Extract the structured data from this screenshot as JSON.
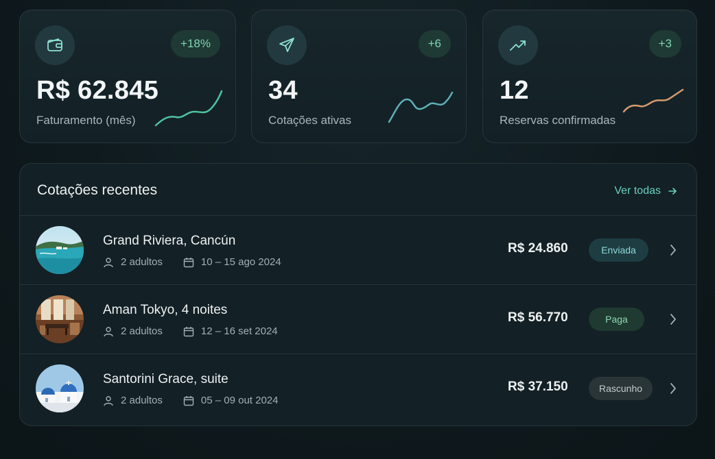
{
  "stats": [
    {
      "icon": "wallet-icon",
      "delta": "+18%",
      "value": "R$ 62.845",
      "label": "Faturamento (mês)",
      "spark_color": "#4fc3a1"
    },
    {
      "icon": "send-icon",
      "delta": "+6",
      "value": "34",
      "label": "Cotações ativas",
      "spark_color": "#5fb1b9"
    },
    {
      "icon": "trending-up-icon",
      "delta": "+3",
      "value": "12",
      "label": "Reservas confirmadas",
      "spark_color": "#d79a6e"
    }
  ],
  "recent": {
    "title": "Cotações recentes",
    "view_all": "Ver todas",
    "items": [
      {
        "title": "Grand Riviera, Cancún",
        "guests": "2 adultos",
        "dates": "10 – 15 ago 2024",
        "price": "R$ 24.860",
        "status": "Enviada",
        "thumb": "beach-resort-photo"
      },
      {
        "title": "Aman Tokyo, 4 noites",
        "guests": "2 adultos",
        "dates": "12 – 16 set 2024",
        "price": "R$ 56.770",
        "status": "Paga",
        "thumb": "hotel-room-photo"
      },
      {
        "title": "Santorini Grace, suite",
        "guests": "2 adultos",
        "dates": "05 – 09 out 2024",
        "price": "R$ 37.150",
        "status": "Rascunho",
        "thumb": "santorini-domes-photo"
      }
    ]
  },
  "colors": {
    "accent": "#6ccfc0",
    "status_enviada": "#1e3d42",
    "status_paga": "#1f3a30",
    "status_rascunho": "#2a3538"
  }
}
